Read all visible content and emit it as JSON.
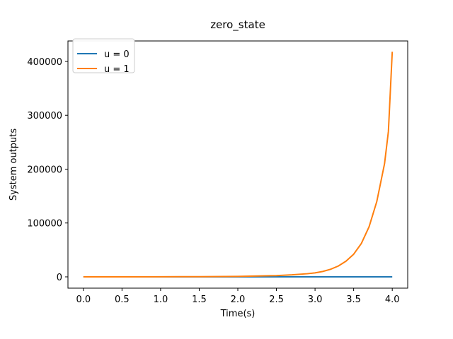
{
  "chart_data": {
    "type": "line",
    "title": "zero_state",
    "xlabel": "Time(s)",
    "ylabel": "System outputs",
    "xlim": [
      -0.2,
      4.2
    ],
    "ylim": [
      -21000,
      438000
    ],
    "xticks": [
      0.0,
      0.5,
      1.0,
      1.5,
      2.0,
      2.5,
      3.0,
      3.5,
      4.0
    ],
    "xtick_labels": [
      "0.0",
      "0.5",
      "1.0",
      "1.5",
      "2.0",
      "2.5",
      "3.0",
      "3.5",
      "4.0"
    ],
    "yticks": [
      0,
      100000,
      200000,
      300000,
      400000
    ],
    "ytick_labels": [
      "0",
      "100000",
      "200000",
      "300000",
      "400000"
    ],
    "grid": false,
    "legend_position": "top-left",
    "series": [
      {
        "name": "u = 0",
        "color": "#1f77b4",
        "x": [
          0.0,
          4.0
        ],
        "y": [
          0,
          0
        ]
      },
      {
        "name": "u = 1",
        "color": "#ff7f0e",
        "x": [
          0.0,
          0.5,
          1.0,
          1.5,
          2.0,
          2.5,
          2.7,
          2.9,
          3.0,
          3.1,
          3.2,
          3.3,
          3.4,
          3.5,
          3.6,
          3.7,
          3.8,
          3.9,
          3.95,
          4.0
        ],
        "y": [
          0,
          20,
          120,
          350,
          850,
          2350,
          3700,
          5800,
          7400,
          10000,
          14000,
          20000,
          29000,
          42000,
          62000,
          93000,
          140000,
          210000,
          270000,
          418000
        ]
      }
    ]
  }
}
